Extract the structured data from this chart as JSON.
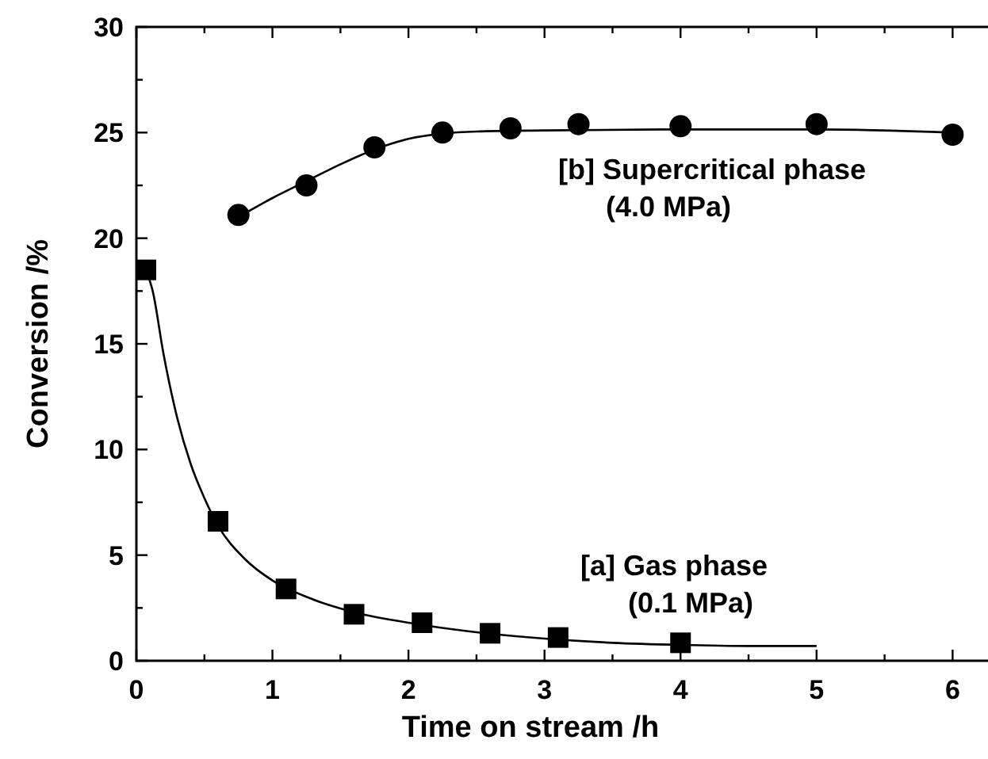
{
  "chart_data": {
    "type": "scatter",
    "xlabel": "Time on stream /h",
    "ylabel": "Conversion /%",
    "xlim": [
      0,
      6.4
    ],
    "ylim": [
      0,
      30
    ],
    "xticks": [
      0,
      {
        "value": 0.5,
        "label": null
      },
      1,
      {
        "value": 1.5,
        "label": null
      },
      2,
      {
        "value": 2.5,
        "label": null
      },
      3,
      {
        "value": 3.5,
        "label": null
      },
      4,
      {
        "value": 4.5,
        "label": null
      },
      5,
      {
        "value": 5.5,
        "label": null
      },
      6
    ],
    "yticks": [
      0,
      {
        "value": 2.5,
        "label": null
      },
      5,
      {
        "value": 7.5,
        "label": null
      },
      10,
      {
        "value": 12.5,
        "label": null
      },
      15,
      {
        "value": 17.5,
        "label": null
      },
      20,
      {
        "value": 22.5,
        "label": null
      },
      25,
      {
        "value": 27.5,
        "label": null
      },
      30
    ],
    "grid": false,
    "series": [
      {
        "type": "line",
        "marker": "none",
        "color": "#000000",
        "x": [
          0.07,
          0.12,
          0.2,
          0.3,
          0.4,
          0.5,
          0.6,
          0.8,
          1.0,
          1.3,
          1.6,
          2.0,
          2.5,
          3.0,
          3.5,
          4.0,
          4.5,
          5.0
        ],
        "values": [
          18.5,
          17.5,
          14.5,
          11.5,
          9.3,
          7.7,
          6.4,
          4.8,
          3.8,
          2.9,
          2.3,
          1.8,
          1.35,
          1.05,
          0.85,
          0.75,
          0.7,
          0.7
        ]
      },
      {
        "type": "line",
        "marker": "none",
        "color": "#000000",
        "x": [
          0.75,
          1.0,
          1.25,
          1.5,
          1.75,
          2.0,
          2.25,
          2.5,
          3.0,
          4.0,
          5.0,
          6.0
        ],
        "values": [
          21.0,
          21.9,
          22.7,
          23.5,
          24.2,
          24.7,
          24.95,
          25.05,
          25.1,
          25.15,
          25.15,
          25.0
        ]
      },
      {
        "marker": "square",
        "color": "#000000",
        "x": [
          0.07,
          0.6,
          1.1,
          1.6,
          2.1,
          2.6,
          3.1,
          4.0
        ],
        "values": [
          18.5,
          6.6,
          3.4,
          2.2,
          1.8,
          1.3,
          1.1,
          0.85
        ]
      },
      {
        "marker": "circle",
        "color": "#000000",
        "x": [
          0.75,
          1.25,
          1.75,
          2.25,
          2.75,
          3.25,
          4.0,
          5.0,
          6.0
        ],
        "values": [
          21.1,
          22.5,
          24.3,
          25.0,
          25.2,
          25.4,
          25.3,
          25.4,
          24.9
        ]
      }
    ],
    "annotations": [
      "[b] Supercritical phase\n(4.0 MPa)",
      "[a] Gas phase\n(0.1 MPa)"
    ]
  }
}
